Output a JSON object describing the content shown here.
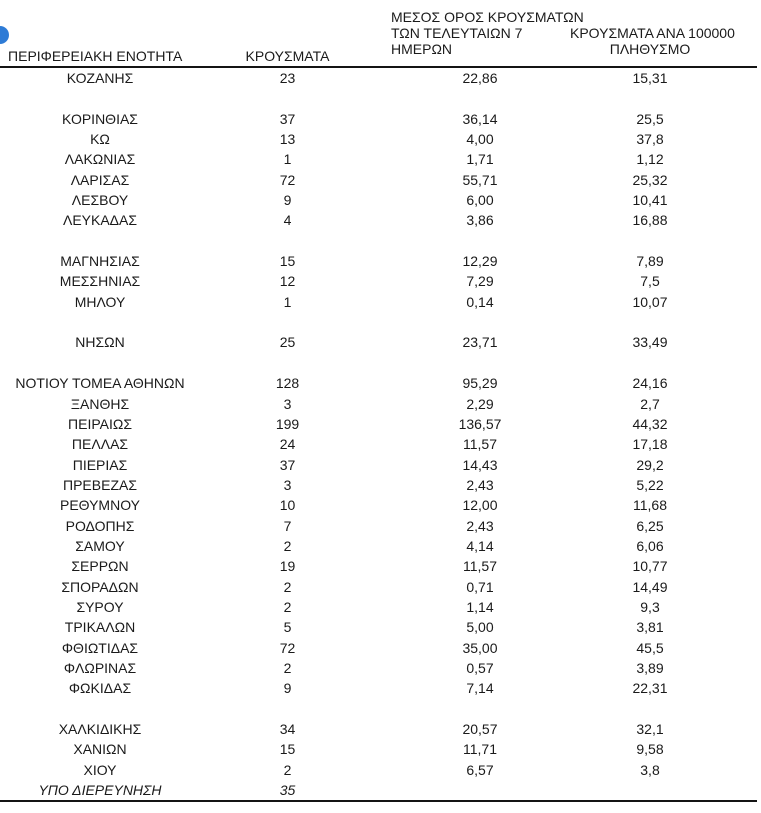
{
  "page": {
    "logo_color": "#2e7bd6"
  },
  "table": {
    "headers": {
      "region": "ΠΕΡΙΦΕΡΕΙΑΚΗ ΕΝΟΤΗΤΑ",
      "cases": "ΚΡΟΥΣΜΑΤΑ",
      "avg7": "ΜΕΣΟΣ ΟΡΟΣ ΚΡΟΥΣΜΑΤΩΝ\nΤΩΝ ΤΕΛΕΥΤΑΙΩΝ 7\nΗΜΕΡΩΝ",
      "per100k": "ΚΡΟΥΣΜΑΤΑ ΑΝΑ 100000\nΠΛΗΘΥΣΜΟ"
    },
    "rows": [
      {
        "region": "ΚΟΖΑΝΗΣ",
        "cases": "23",
        "avg7": "22,86",
        "per100k": "15,31"
      },
      {
        "spacer": true
      },
      {
        "region": "ΚΟΡΙΝΘΙΑΣ",
        "cases": "37",
        "avg7": "36,14",
        "per100k": "25,5"
      },
      {
        "region": "ΚΩ",
        "cases": "13",
        "avg7": "4,00",
        "per100k": "37,8"
      },
      {
        "region": "ΛΑΚΩΝΙΑΣ",
        "cases": "1",
        "avg7": "1,71",
        "per100k": "1,12"
      },
      {
        "region": "ΛΑΡΙΣΑΣ",
        "cases": "72",
        "avg7": "55,71",
        "per100k": "25,32"
      },
      {
        "region": "ΛΕΣΒΟΥ",
        "cases": "9",
        "avg7": "6,00",
        "per100k": "10,41"
      },
      {
        "region": "ΛΕΥΚΑΔΑΣ",
        "cases": "4",
        "avg7": "3,86",
        "per100k": "16,88"
      },
      {
        "spacer": true
      },
      {
        "region": "ΜΑΓΝΗΣΙΑΣ",
        "cases": "15",
        "avg7": "12,29",
        "per100k": "7,89"
      },
      {
        "region": "ΜΕΣΣΗΝΙΑΣ",
        "cases": "12",
        "avg7": "7,29",
        "per100k": "7,5"
      },
      {
        "region": "ΜΗΛΟΥ",
        "cases": "1",
        "avg7": "0,14",
        "per100k": "10,07"
      },
      {
        "spacer": true
      },
      {
        "region": "ΝΗΣΩΝ",
        "cases": "25",
        "avg7": "23,71",
        "per100k": "33,49"
      },
      {
        "spacer": true
      },
      {
        "region": "ΝΟΤΙΟΥ ΤΟΜΕΑ ΑΘΗΝΩΝ",
        "cases": "128",
        "avg7": "95,29",
        "per100k": "24,16"
      },
      {
        "region": "ΞΑΝΘΗΣ",
        "cases": "3",
        "avg7": "2,29",
        "per100k": "2,7"
      },
      {
        "region": "ΠΕΙΡΑΙΩΣ",
        "cases": "199",
        "avg7": "136,57",
        "per100k": "44,32"
      },
      {
        "region": "ΠΕΛΛΑΣ",
        "cases": "24",
        "avg7": "11,57",
        "per100k": "17,18"
      },
      {
        "region": "ΠΙΕΡΙΑΣ",
        "cases": "37",
        "avg7": "14,43",
        "per100k": "29,2"
      },
      {
        "region": "ΠΡΕΒΕΖΑΣ",
        "cases": "3",
        "avg7": "2,43",
        "per100k": "5,22"
      },
      {
        "region": "ΡΕΘΥΜΝΟΥ",
        "cases": "10",
        "avg7": "12,00",
        "per100k": "11,68"
      },
      {
        "region": "ΡΟΔΟΠΗΣ",
        "cases": "7",
        "avg7": "2,43",
        "per100k": "6,25"
      },
      {
        "region": "ΣΑΜΟΥ",
        "cases": "2",
        "avg7": "4,14",
        "per100k": "6,06"
      },
      {
        "region": "ΣΕΡΡΩΝ",
        "cases": "19",
        "avg7": "11,57",
        "per100k": "10,77"
      },
      {
        "region": "ΣΠΟΡΑΔΩΝ",
        "cases": "2",
        "avg7": "0,71",
        "per100k": "14,49"
      },
      {
        "region": "ΣΥΡΟΥ",
        "cases": "2",
        "avg7": "1,14",
        "per100k": "9,3"
      },
      {
        "region": "ΤΡΙΚΑΛΩΝ",
        "cases": "5",
        "avg7": "5,00",
        "per100k": "3,81"
      },
      {
        "region": "ΦΘΙΩΤΙΔΑΣ",
        "cases": "72",
        "avg7": "35,00",
        "per100k": "45,5"
      },
      {
        "region": "ΦΛΩΡΙΝΑΣ",
        "cases": "2",
        "avg7": "0,57",
        "per100k": "3,89"
      },
      {
        "region": "ΦΩΚΙΔΑΣ",
        "cases": "9",
        "avg7": "7,14",
        "per100k": "22,31"
      },
      {
        "spacer": true
      },
      {
        "region": "ΧΑΛΚΙΔΙΚΗΣ",
        "cases": "34",
        "avg7": "20,57",
        "per100k": "32,1"
      },
      {
        "region": "ΧΑΝΙΩΝ",
        "cases": "15",
        "avg7": "11,71",
        "per100k": "9,58"
      },
      {
        "region": "ΧΙΟΥ",
        "cases": "2",
        "avg7": "6,57",
        "per100k": "3,8"
      },
      {
        "region": "ΥΠΟ ΔΙΕΡΕΥΝΗΣΗ",
        "cases": "35",
        "avg7": "",
        "per100k": "",
        "italic": true
      }
    ]
  }
}
